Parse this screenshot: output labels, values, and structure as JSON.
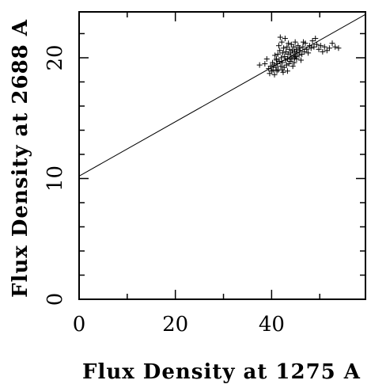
{
  "chart_data": {
    "type": "scatter",
    "title": "",
    "xlabel": "Flux Density at 1275 A",
    "ylabel": "Flux Density at 2688 A",
    "xlim": [
      0,
      59.5
    ],
    "ylim": [
      0,
      23.8
    ],
    "x_major_ticks": [
      0,
      20,
      40
    ],
    "y_major_ticks": [
      0,
      10,
      20
    ],
    "x_minor_step": 10,
    "y_minor_step": 2,
    "grid": false,
    "legend": "none",
    "marker": "plus",
    "colors": {
      "ink": "#000000",
      "background": "#ffffff"
    },
    "fit_line": {
      "intercept": 10.2,
      "slope": 0.225
    },
    "points": [
      [
        37.5,
        19.4
      ],
      [
        38.6,
        19.5
      ],
      [
        39.0,
        19.9
      ],
      [
        39.4,
        19.1
      ],
      [
        39.6,
        18.7
      ],
      [
        39.8,
        19.3
      ],
      [
        40.0,
        18.9
      ],
      [
        40.2,
        19.6
      ],
      [
        40.3,
        19.0
      ],
      [
        40.5,
        19.4
      ],
      [
        40.6,
        18.6
      ],
      [
        40.7,
        20.2
      ],
      [
        40.9,
        19.2
      ],
      [
        41.0,
        19.8
      ],
      [
        41.1,
        18.9
      ],
      [
        41.2,
        19.5
      ],
      [
        41.3,
        20.3
      ],
      [
        41.4,
        19.0
      ],
      [
        41.5,
        21.0
      ],
      [
        41.6,
        19.7
      ],
      [
        41.7,
        20.6
      ],
      [
        41.8,
        21.7
      ],
      [
        41.9,
        19.3
      ],
      [
        42.0,
        20.0
      ],
      [
        42.1,
        21.3
      ],
      [
        42.2,
        19.6
      ],
      [
        42.3,
        20.4
      ],
      [
        42.4,
        18.8
      ],
      [
        42.5,
        20.8
      ],
      [
        42.6,
        19.2
      ],
      [
        42.7,
        20.1
      ],
      [
        42.8,
        21.6
      ],
      [
        42.9,
        19.8
      ],
      [
        43.0,
        20.5
      ],
      [
        43.1,
        19.4
      ],
      [
        43.2,
        20.9
      ],
      [
        43.3,
        19.9
      ],
      [
        43.4,
        20.3
      ],
      [
        43.5,
        21.2
      ],
      [
        43.6,
        19.5
      ],
      [
        43.7,
        20.7
      ],
      [
        43.8,
        20.0
      ],
      [
        43.9,
        19.7
      ],
      [
        44.0,
        20.4
      ],
      [
        44.1,
        21.1
      ],
      [
        44.2,
        19.9
      ],
      [
        44.3,
        20.6
      ],
      [
        44.4,
        19.3
      ],
      [
        44.5,
        20.2
      ],
      [
        44.6,
        20.9
      ],
      [
        44.7,
        19.6
      ],
      [
        44.8,
        20.5
      ],
      [
        44.9,
        21.3
      ],
      [
        45.0,
        20.1
      ],
      [
        45.1,
        20.7
      ],
      [
        45.2,
        19.9
      ],
      [
        45.3,
        20.4
      ],
      [
        45.5,
        21.0
      ],
      [
        45.7,
        20.2
      ],
      [
        45.9,
        20.6
      ],
      [
        46.1,
        19.8
      ],
      [
        46.3,
        20.3
      ],
      [
        46.5,
        20.9
      ],
      [
        46.8,
        20.5
      ],
      [
        47.0,
        21.2
      ],
      [
        47.3,
        20.7
      ],
      [
        47.6,
        20.4
      ],
      [
        47.9,
        21.0
      ],
      [
        48.2,
        20.8
      ],
      [
        48.5,
        21.4
      ],
      [
        48.8,
        20.9
      ],
      [
        49.1,
        21.6
      ],
      [
        49.4,
        21.1
      ],
      [
        49.8,
        20.7
      ],
      [
        50.2,
        21.0
      ],
      [
        50.6,
        20.5
      ],
      [
        51.0,
        20.9
      ],
      [
        51.5,
        20.6
      ],
      [
        52.0,
        20.8
      ],
      [
        52.6,
        21.2
      ],
      [
        53.2,
        20.9
      ],
      [
        53.9,
        20.8
      ],
      [
        43.3,
        18.9
      ],
      [
        42.2,
        19.0
      ],
      [
        41.0,
        19.9
      ],
      [
        44.8,
        20.0
      ],
      [
        46.6,
        21.3
      ],
      [
        45.8,
        20.8
      ]
    ]
  }
}
